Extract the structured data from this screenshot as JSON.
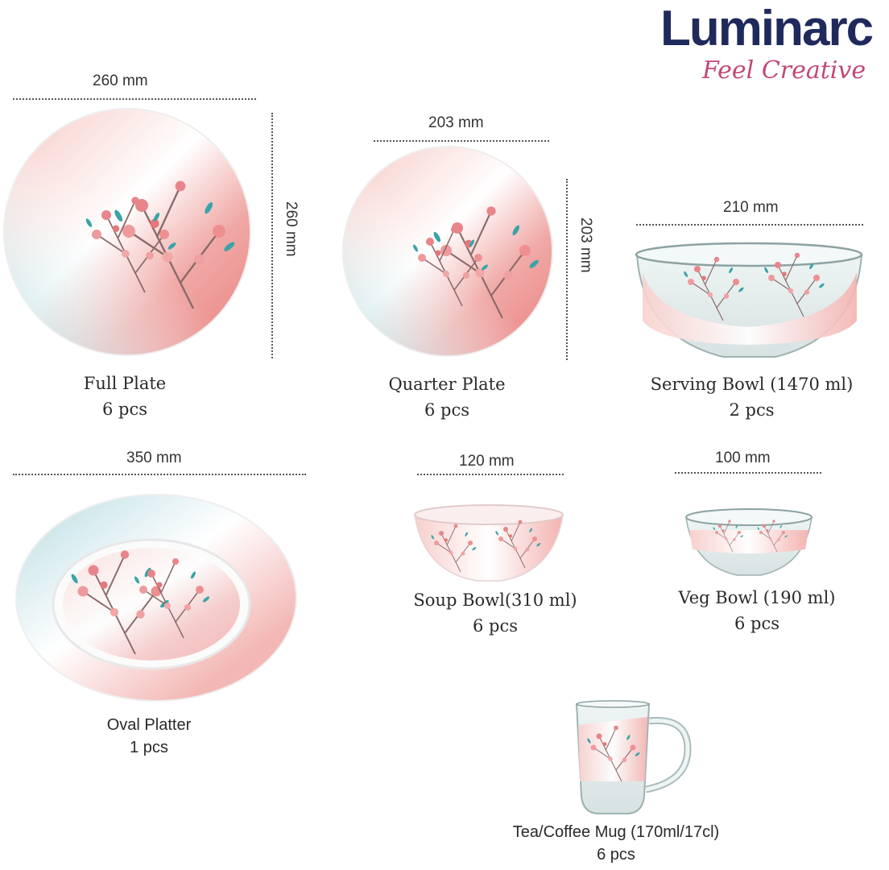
{
  "brand": {
    "name": "Luminarc",
    "tagline": "Feel Creative"
  },
  "colors": {
    "brand_navy": "#1f2a5c",
    "brand_pink": "#c2477a",
    "blossom": "#e8858a",
    "wash_pink": "#f2b7b3",
    "wash_blue": "#cfe7ea"
  },
  "items": {
    "full_plate": {
      "width": "260 mm",
      "height": "260 mm",
      "name": "Full Plate",
      "qty": "6 pcs"
    },
    "quarter_plate": {
      "width": "203 mm",
      "height": "203 mm",
      "name": "Quarter Plate",
      "qty": "6 pcs"
    },
    "serving_bowl": {
      "width": "210 mm",
      "name": "Serving Bowl (1470 ml)",
      "qty": "2 pcs"
    },
    "oval_platter": {
      "width": "350 mm",
      "name": "Oval Platter",
      "qty": "1 pcs"
    },
    "soup_bowl": {
      "width": "120 mm",
      "name": "Soup Bowl(310 ml)",
      "qty": "6 pcs"
    },
    "veg_bowl": {
      "width": "100 mm",
      "name": "Veg Bowl (190 ml)",
      "qty": "6 pcs"
    },
    "mug": {
      "name": "Tea/Coffee Mug (170ml/17cl)",
      "qty": "6 pcs"
    }
  }
}
